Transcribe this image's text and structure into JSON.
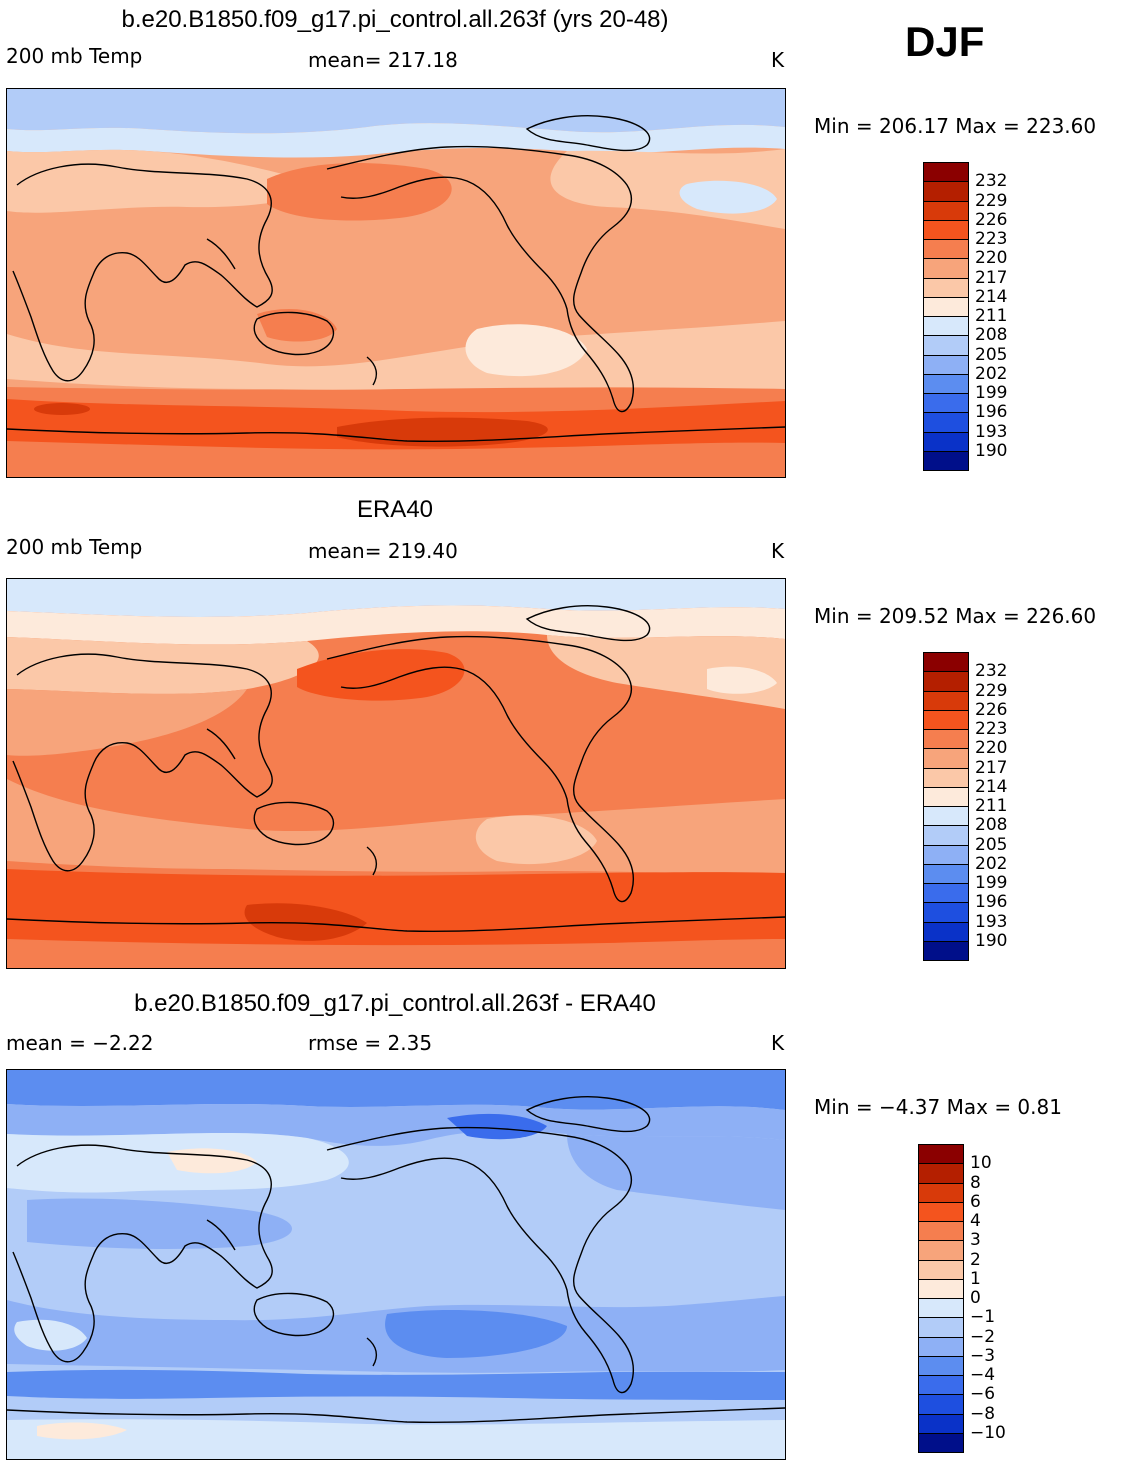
{
  "season": "DJF",
  "panels": [
    {
      "title": "b.e20.B1850.f09_g17.pi_control.all.263f (yrs 20-48)",
      "left_label": "200 mb Temp",
      "stat_label": "mean= 217.18",
      "units": "K",
      "minmax": "Min = 206.17 Max = 223.60",
      "colorbar_labels": [
        "232",
        "229",
        "226",
        "223",
        "220",
        "217",
        "214",
        "211",
        "208",
        "205",
        "202",
        "199",
        "196",
        "193",
        "190"
      ],
      "colorbar_colors": [
        "#8b0000",
        "#b41f00",
        "#d83a0a",
        "#f4541e",
        "#f57e4f",
        "#f7a47b",
        "#fbc8a8",
        "#fdeadb",
        "#d7e8fb",
        "#b2ccf8",
        "#8eb0f5",
        "#5c8df0",
        "#3a6cec",
        "#1e4fe0",
        "#0a32c8",
        "#000f8a"
      ],
      "map": {
        "base": "#f7a47b",
        "bands": [
          {
            "color": "#d7e8fb",
            "level": 208
          },
          {
            "color": "#fbc8a8",
            "level": 214
          },
          {
            "color": "#f57e4f",
            "level": 220
          },
          {
            "color": "#f4541e",
            "level": 223
          }
        ]
      }
    },
    {
      "title": "ERA40",
      "left_label": "200 mb Temp",
      "stat_label": "mean= 219.40",
      "units": "K",
      "minmax": "Min = 209.52 Max = 226.60",
      "colorbar_labels": [
        "232",
        "229",
        "226",
        "223",
        "220",
        "217",
        "214",
        "211",
        "208",
        "205",
        "202",
        "199",
        "196",
        "193",
        "190"
      ],
      "colorbar_colors": [
        "#8b0000",
        "#b41f00",
        "#d83a0a",
        "#f4541e",
        "#f57e4f",
        "#f7a47b",
        "#fbc8a8",
        "#fdeadb",
        "#d7e8fb",
        "#b2ccf8",
        "#8eb0f5",
        "#5c8df0",
        "#3a6cec",
        "#1e4fe0",
        "#0a32c8",
        "#000f8a"
      ],
      "map": {
        "base": "#f57e4f"
      }
    },
    {
      "title": "b.e20.B1850.f09_g17.pi_control.all.263f - ERA40",
      "left_label": "mean =  −2.22",
      "stat_label": "rmse =   2.35",
      "units": "K",
      "minmax": "Min =  −4.37 Max =   0.81",
      "colorbar_labels": [
        "10",
        "8",
        "6",
        "4",
        "3",
        "2",
        "1",
        "0",
        "−1",
        "−2",
        "−3",
        "−4",
        "−6",
        "−8",
        "−10"
      ],
      "colorbar_colors": [
        "#8b0000",
        "#b41f00",
        "#d83a0a",
        "#f4541e",
        "#f57e4f",
        "#f7a47b",
        "#fbc8a8",
        "#fdeadb",
        "#d7e8fb",
        "#b2ccf8",
        "#8eb0f5",
        "#5c8df0",
        "#3a6cec",
        "#1e4fe0",
        "#0a32c8",
        "#000f8a"
      ],
      "map": {
        "base": "#b2ccf8"
      }
    }
  ]
}
